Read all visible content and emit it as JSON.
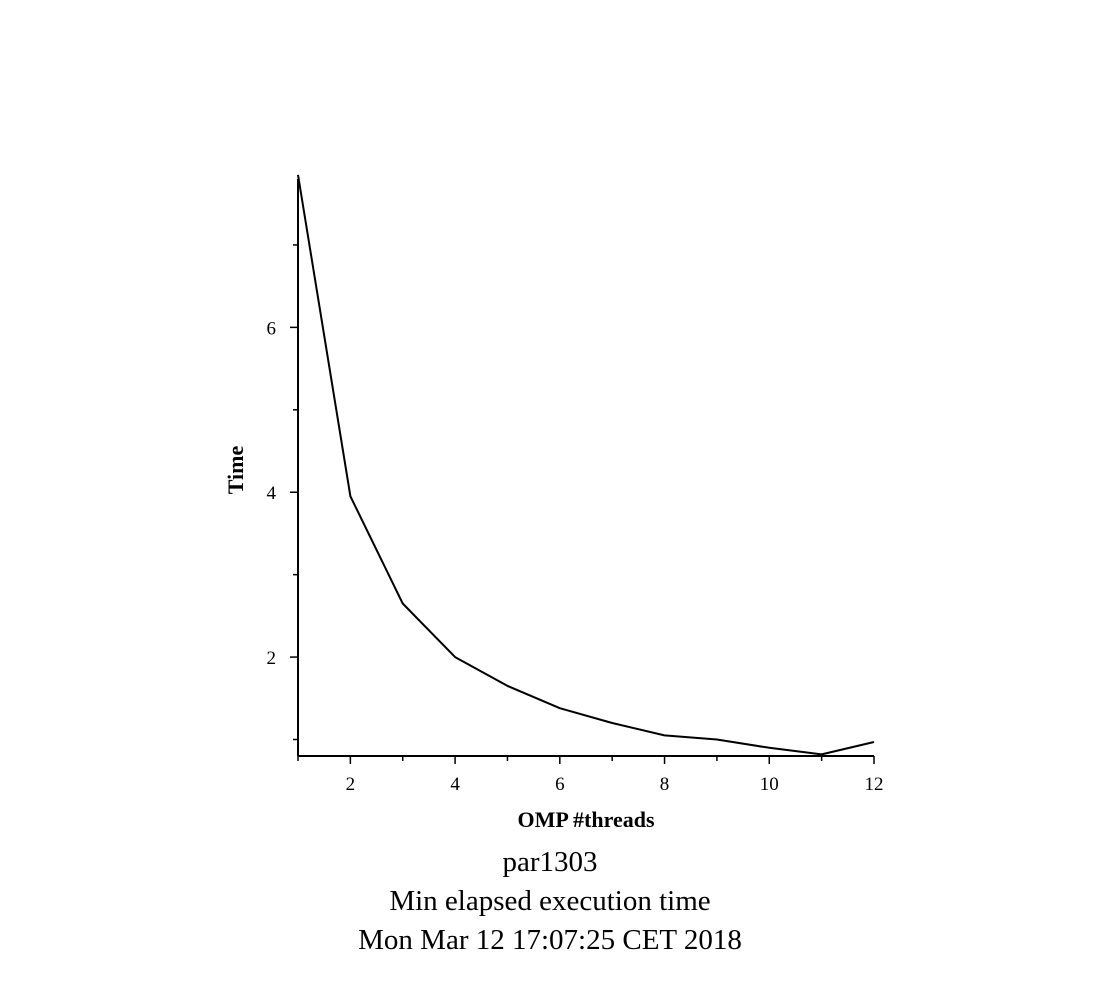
{
  "chart_data": {
    "type": "line",
    "xlabel": "OMP #threads",
    "ylabel": "Time",
    "xlim": [
      1,
      12
    ],
    "ylim": [
      0.8,
      7.8
    ],
    "grid": false,
    "xticks": [
      2,
      4,
      6,
      8,
      10,
      12
    ],
    "yticks": [
      2,
      4,
      6
    ],
    "x": [
      1,
      2,
      3,
      4,
      5,
      6,
      7,
      8,
      9,
      10,
      11,
      12
    ],
    "series": [
      {
        "values": [
          7.85,
          3.95,
          2.65,
          2.0,
          1.65,
          1.38,
          1.2,
          1.05,
          1.0,
          0.9,
          0.82,
          0.97
        ]
      }
    ],
    "line_color": "#000000"
  },
  "caption": {
    "line1": "par1303",
    "line2": "Min elapsed execution time",
    "line3": "Mon Mar 12 17:07:25 CET 2018"
  }
}
